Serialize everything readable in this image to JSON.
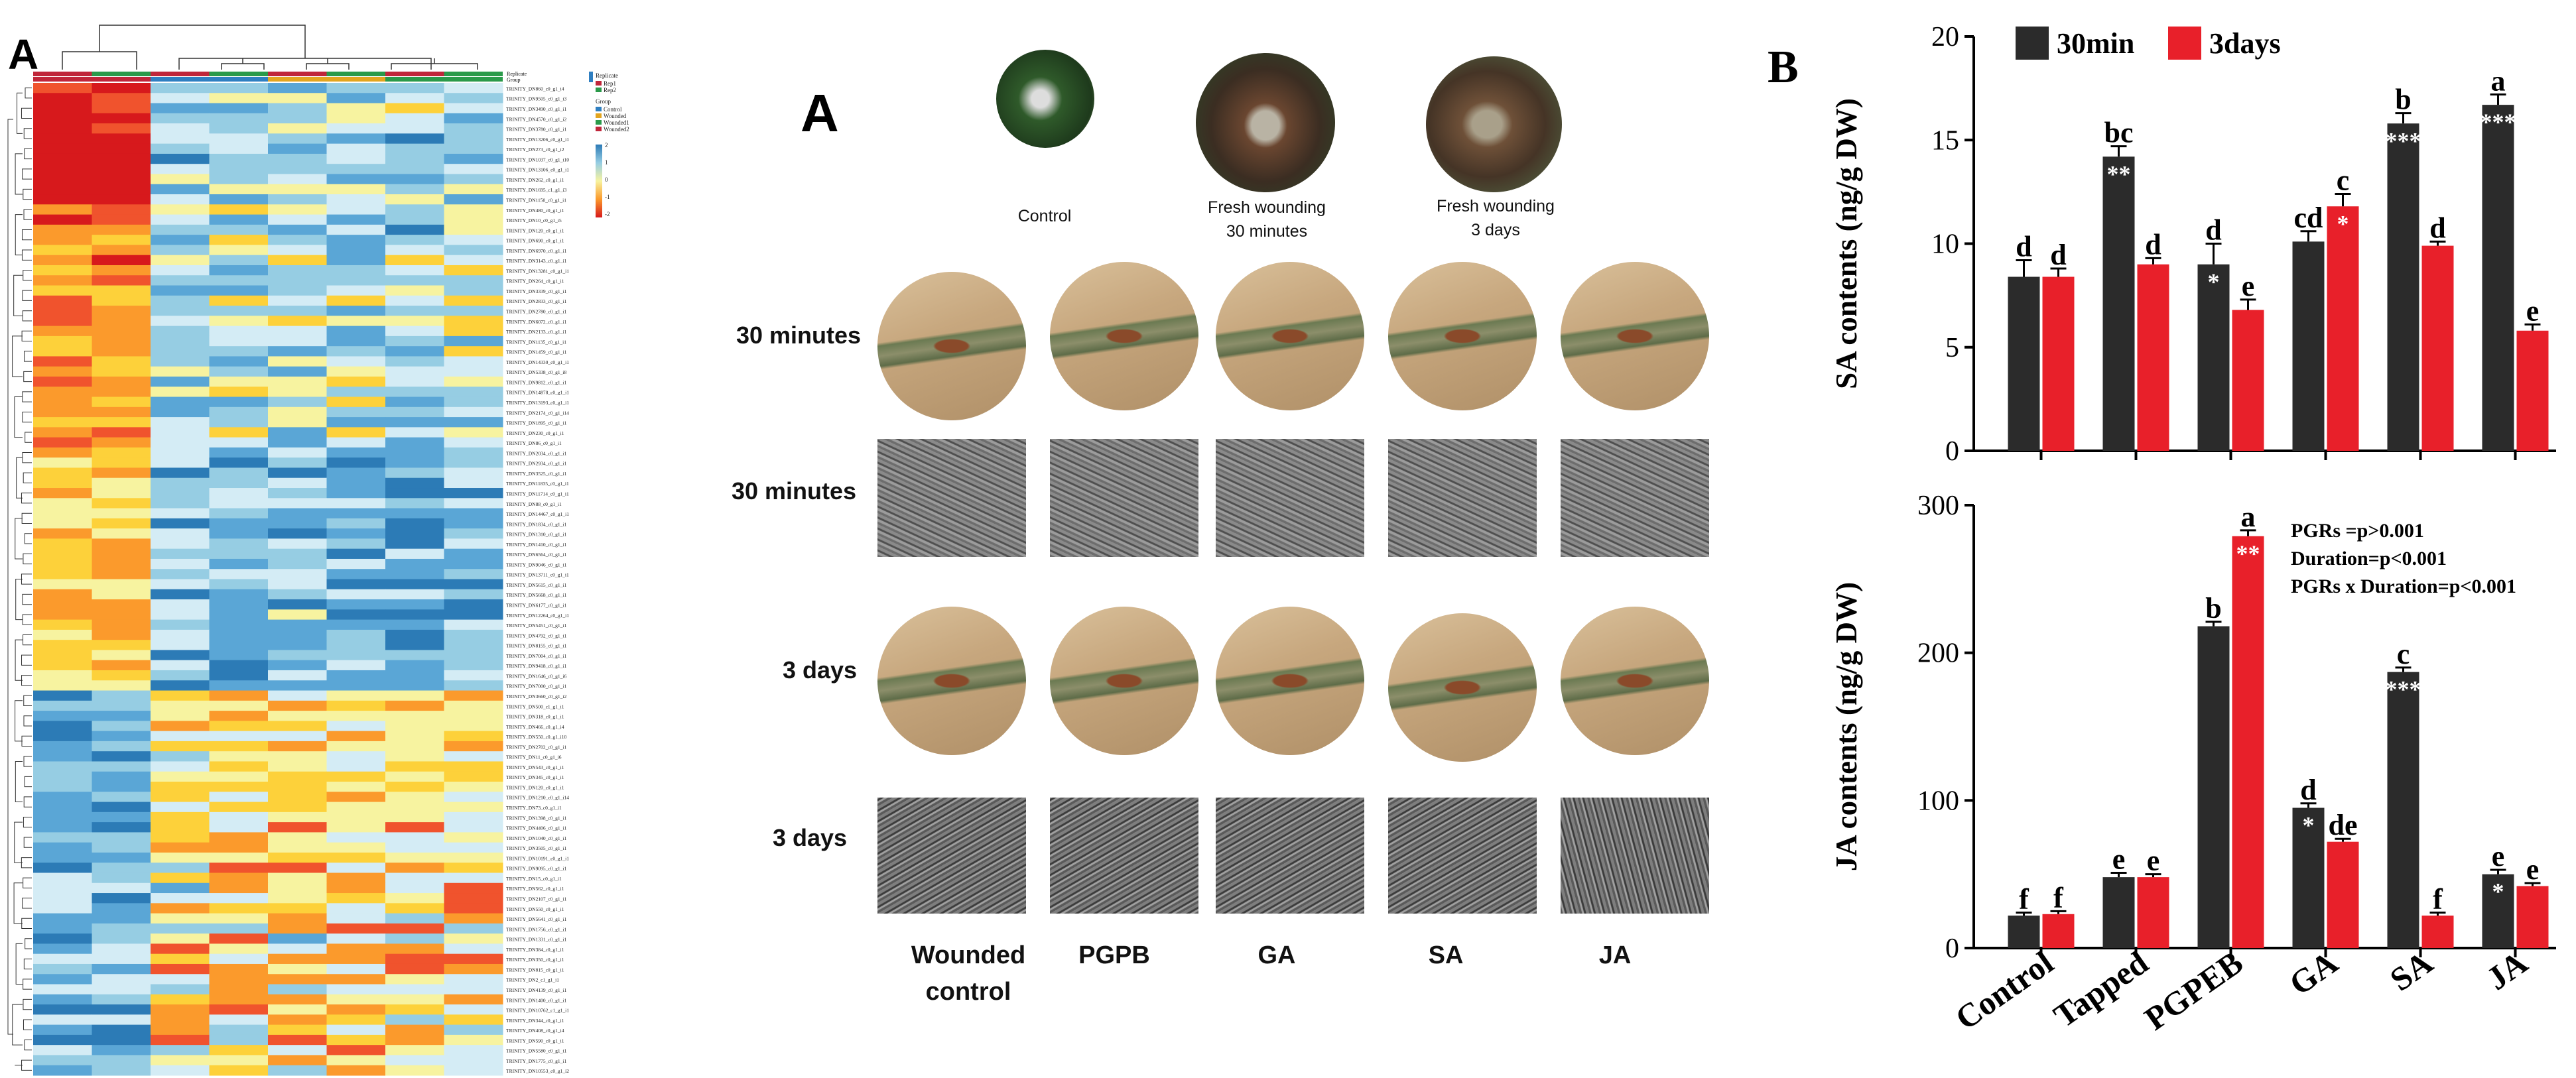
{
  "panel_letters": {
    "heatmap": "A",
    "photos": "A",
    "charts": "B"
  },
  "heatmap": {
    "legend": {
      "replicate_title": "Replicate",
      "replicate_items": [
        "Rep1",
        "Rep2"
      ],
      "group_title": "Group",
      "group_items": [
        "Control",
        "Wounded",
        "Wounded1",
        "Wounded2"
      ],
      "scale_ticks": [
        "2",
        "1",
        "0",
        "-1",
        "-2"
      ],
      "colors": {
        "rep1": "#c0263a",
        "rep2": "#2a9a4a",
        "control": "#2f7fc1",
        "wounded": "#e3a51f",
        "wounded1": "#2a9a4a",
        "wounded2": "#c0263a"
      }
    },
    "annotation_labels": [
      "Replicate",
      "Group"
    ],
    "row_labels": [
      "TRINITY_DN860_c0_g1_i4",
      "TRINITY_DN9505_c0_g1_i3",
      "TRINITY_DN3490_c0_g1_i1",
      "TRINITY_DN4570_c0_g1_i2",
      "TRINITY_DN3780_c0_g1_i1",
      "TRINITY_DN13206_c0_g1_i1",
      "TRINITY_DN273_c0_g1_i2",
      "TRINITY_DN1037_c0_g1_i10",
      "TRINITY_DN13106_c0_g1_i1",
      "TRINITY_DN262_c0_g1_i1",
      "TRINITY_DN1695_c1_g1_i3",
      "TRINITY_DN1150_c0_g1_i1",
      "TRINITY_DN480_c0_g1_i1",
      "TRINITY_DN10_c0_g1_i5",
      "TRINITY_DN120_c0_g1_i1",
      "TRINITY_DN690_c0_g1_i1",
      "TRINITY_DN6970_c0_g1_i1",
      "TRINITY_DN3143_c0_g1_i1",
      "TRINITY_DN13281_c0_g1_i1",
      "TRINITY_DN264_c0_g1_i1",
      "TRINITY_DN3339_c0_g1_i1",
      "TRINITY_DN2833_c0_g1_i1",
      "TRINITY_DN2780_c0_g1_i1",
      "TRINITY_DN6072_c0_g1_i1",
      "TRINITY_DN2133_c0_g1_i1",
      "TRINITY_DN1135_c0_g1_i1",
      "TRINITY_DN1459_c0_g1_i1",
      "TRINITY_DN14330_c0_g1_i1",
      "TRINITY_DN5338_c0_g1_i8",
      "TRINITY_DN9812_c0_g1_i1",
      "TRINITY_DN14878_c0_g1_i1",
      "TRINITY_DN13193_c0_g1_i1",
      "TRINITY_DN2174_c0_g1_i14",
      "TRINITY_DN1895_c0_g1_i1",
      "TRINITY_DN230_c0_g1_i1",
      "TRINITY_DN86_c0_g1_i1",
      "TRINITY_DN2034_c0_g1_i1",
      "TRINITY_DN2934_c0_g1_i1",
      "TRINITY_DN3525_c0_g1_i1",
      "TRINITY_DN11835_c0_g1_i1",
      "TRINITY_DN11714_c0_g1_i1",
      "TRINITY_DN88_c0_g1_i1",
      "TRINITY_DN14467_c0_g1_i1",
      "TRINITY_DN1834_c0_g1_i1",
      "TRINITY_DN1310_c0_g1_i1",
      "TRINITY_DN1410_c0_g1_i1",
      "TRINITY_DN6564_c0_g1_i1",
      "TRINITY_DN9046_c0_g1_i1",
      "TRINITY_DN13711_c0_g1_i1",
      "TRINITY_DN5615_c0_g1_i1",
      "TRINITY_DN5668_c0_g1_i1",
      "TRINITY_DN6177_c0_g1_i1",
      "TRINITY_DN12264_c0_g1_i1",
      "TRINITY_DN5451_c0_g1_i1",
      "TRINITY_DN4792_c0_g1_i1",
      "TRINITY_DN8155_c0_g1_i1",
      "TRINITY_DN7004_c0_g1_i1",
      "TRINITY_DN9418_c0_g1_i1",
      "TRINITY_DN1646_c0_g1_i6",
      "TRINITY_DN7000_c0_g1_i1",
      "TRINITY_DN3660_c0_g1_i2",
      "TRINITY_DN500_c1_g1_i1",
      "TRINITY_DN318_c0_g1_i1",
      "TRINITY_DN466_c0_g1_i4",
      "TRINITY_DN550_c0_g1_i10",
      "TRINITY_DN2702_c0_g1_i1",
      "TRINITY_DN11_c0_g1_i6",
      "TRINITY_DN543_c0_g1_i1",
      "TRINITY_DN345_c0_g1_i1",
      "TRINITY_DN120_c0_g1_i1",
      "TRINITY_DN1210_c0_g1_i14",
      "TRINITY_DN73_c0_g1_i1",
      "TRINITY_DN1398_c0_g1_i1",
      "TRINITY_DN4406_c0_g1_i1",
      "TRINITY_DN1040_c0_g1_i1",
      "TRINITY_DN3505_c0_g1_i1",
      "TRINITY_DN10191_c0_g1_i1",
      "TRINITY_DN9095_c0_g1_i1",
      "TRINITY_DN15_c0_g1_i1",
      "TRINITY_DN562_c0_g1_i1",
      "TRINITY_DN2107_c0_g1_i1",
      "TRINITY_DN550_c0_g1_i1",
      "TRINITY_DN5641_c0_g1_i1",
      "TRINITY_DN1756_c0_g1_i1",
      "TRINITY_DN1331_c0_g1_i1",
      "TRINITY_DN384_c0_g1_i1",
      "TRINITY_DN350_c0_g1_i1",
      "TRINITY_DN815_c0_g1_i1",
      "TRINITY_DN2_c1_g1_i1",
      "TRINITY_DN4139_c0_g1_i1",
      "TRINITY_DN1400_c0_g1_i1",
      "TRINITY_DN10762_c1_g1_i1",
      "TRINITY_DN344_c0_g1_i1",
      "TRINITY_DN408_c0_g1_i4",
      "TRINITY_DN590_c0_g1_i1",
      "TRINITY_DN5580_c0_g1_i1",
      "TRINITY_DN1775_c0_g1_i1",
      "TRINITY_DN10553_c0_g1_i2"
    ]
  },
  "photo_panel": {
    "top_titles": [
      "Control",
      "Fresh wounding\n30 minutes",
      "Fresh wounding\n3 days"
    ],
    "row_labels": [
      "30 minutes",
      "30 minutes",
      "3 days",
      "3 days"
    ],
    "treatments": [
      "Wounded\ncontrol",
      "PGPB",
      "GA",
      "SA",
      "JA"
    ]
  },
  "chart_data": [
    {
      "type": "bar",
      "categories": [
        "Control",
        "Tapped",
        "PGPEB",
        "GA",
        "SA",
        "JA"
      ],
      "series": [
        {
          "name": "30min",
          "color": "#2b2b2b",
          "values": [
            8.4,
            14.2,
            9.0,
            10.1,
            15.8,
            16.7
          ],
          "errors": [
            0.8,
            0.5,
            1.0,
            0.5,
            0.5,
            0.5
          ],
          "letters": [
            "d",
            "bc",
            "d",
            "cd",
            "b",
            "a"
          ],
          "stars": [
            "",
            "**",
            "*",
            "",
            "***",
            "***"
          ]
        },
        {
          "name": "3days",
          "color": "#e8202a",
          "values": [
            8.4,
            9.0,
            6.8,
            11.8,
            9.9,
            5.8
          ],
          "errors": [
            0.4,
            0.3,
            0.5,
            0.6,
            0.2,
            0.3
          ],
          "letters": [
            "d",
            "d",
            "e",
            "c",
            "d",
            "e"
          ],
          "stars": [
            "",
            "",
            "",
            "*",
            "",
            ""
          ]
        }
      ],
      "ylabel": "SA contents (ng/g DW)",
      "ylim": [
        0,
        20
      ],
      "yticks": [
        0,
        5,
        10,
        15,
        20
      ],
      "legend": "top-left"
    },
    {
      "type": "bar",
      "categories": [
        "Control",
        "Tapped",
        "PGPEB",
        "GA",
        "SA",
        "JA"
      ],
      "series": [
        {
          "name": "30min",
          "color": "#2b2b2b",
          "values": [
            22,
            48,
            218,
            95,
            187,
            50
          ],
          "errors": [
            2,
            3,
            3,
            3,
            3,
            3
          ],
          "letters": [
            "f",
            "e",
            "b",
            "d",
            "c",
            "e"
          ],
          "stars": [
            "",
            "",
            "",
            "*",
            "***",
            "*"
          ]
        },
        {
          "name": "3days",
          "color": "#e8202a",
          "values": [
            23,
            48,
            279,
            72,
            22,
            42
          ],
          "errors": [
            2,
            2,
            4,
            2,
            2,
            2
          ],
          "letters": [
            "f",
            "e",
            "a",
            "de",
            "f",
            "e"
          ],
          "stars": [
            "",
            "",
            "**",
            "",
            "",
            ""
          ]
        }
      ],
      "ylabel": "JA contents (ng/g DW)",
      "ylim": [
        0,
        300
      ],
      "yticks": [
        0,
        100,
        200,
        300
      ],
      "annotations": [
        "PGRs =p>0.001",
        "Duration=p<0.001",
        "PGRs x Duration=p<0.001"
      ]
    }
  ]
}
